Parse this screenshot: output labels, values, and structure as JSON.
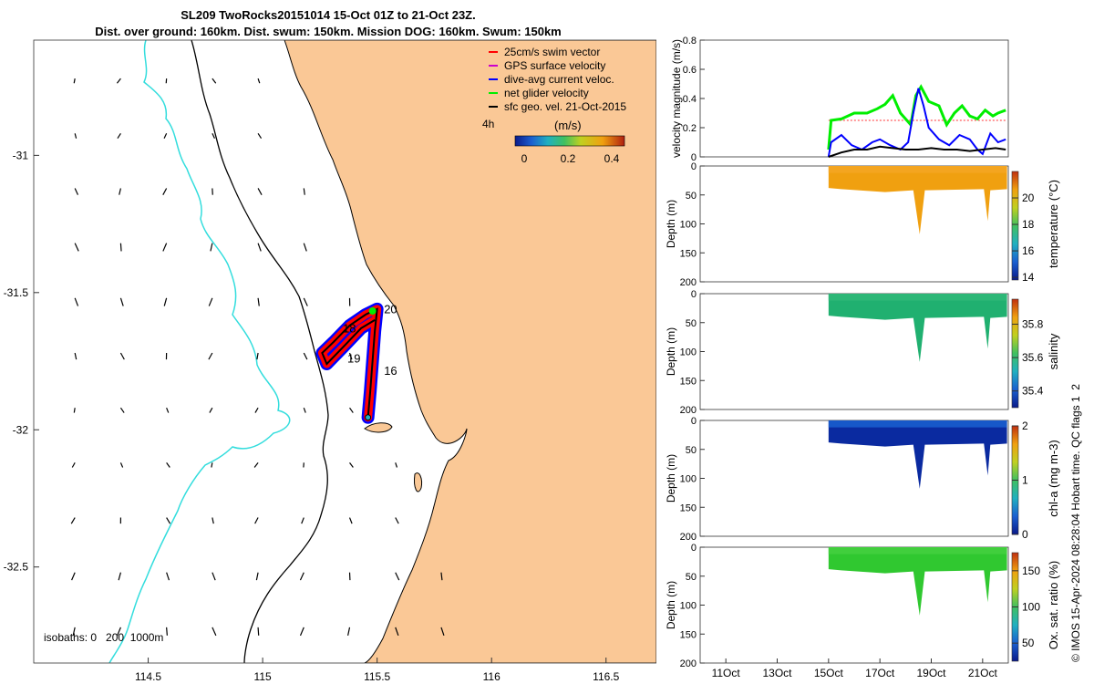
{
  "title": {
    "line1": "SL209 TwoRocks20151014 15-Oct 01Z to 21-Oct 23Z.",
    "line2": "Dist. over ground: 160km. Dist. swum: 150km. Mission DOG: 160km. Swum: 150km"
  },
  "colors": {
    "land": "#fac896",
    "isobath": "#000000",
    "isobath_1000": "#33dddd",
    "track_red": "#ff0000",
    "track_blue": "#0000ff",
    "track_green": "#00ee00",
    "track_black": "#000000",
    "gps_magenta": "#cc00cc"
  },
  "chart_data": [
    {
      "type": "map",
      "name": "glider-track-map",
      "x_ticks": [
        "114.5",
        "115",
        "115.5",
        "116",
        "116.5"
      ],
      "y_ticks": [
        "-31",
        "-31.5",
        "-32",
        "-32.5"
      ],
      "xlim": [
        114.0,
        116.72
      ],
      "ylim": [
        -32.85,
        -30.58
      ],
      "legend": {
        "items": [
          {
            "label": "25cm/s swim vector",
            "color": "#ff0000"
          },
          {
            "label": "GPS surface velocity",
            "color": "#cc00cc"
          },
          {
            "label": "dive-avg current veloc.",
            "color": "#0000ff"
          },
          {
            "label": "net glider velocity",
            "color": "#00ee00"
          },
          {
            "label": "sfc geo. vel. 21-Oct-2015",
            "color": "#000000"
          }
        ],
        "colorbar_time": "4h",
        "colorbar_units": "(m/s)",
        "colorbar_ticks": [
          "0",
          "0.2",
          "0.4"
        ],
        "colorbar_range": [
          0,
          0.5
        ]
      },
      "track_labels": [
        {
          "label": "20",
          "lon": 115.53,
          "lat": -31.575
        },
        {
          "label": "18",
          "lon": 115.35,
          "lat": -31.645
        },
        {
          "label": "19",
          "lon": 115.37,
          "lat": -31.755
        },
        {
          "label": "16",
          "lon": 115.53,
          "lat": -31.8
        }
      ],
      "track": [
        {
          "lon": 115.46,
          "lat": -31.955
        },
        {
          "lon": 115.47,
          "lat": -31.86
        },
        {
          "lon": 115.48,
          "lat": -31.75
        },
        {
          "lon": 115.49,
          "lat": -31.64
        },
        {
          "lon": 115.5,
          "lat": -31.56
        },
        {
          "lon": 115.45,
          "lat": -31.58
        },
        {
          "lon": 115.38,
          "lat": -31.62
        },
        {
          "lon": 115.31,
          "lat": -31.68
        },
        {
          "lon": 115.26,
          "lat": -31.72
        },
        {
          "lon": 115.28,
          "lat": -31.76
        },
        {
          "lon": 115.35,
          "lat": -31.7
        },
        {
          "lon": 115.43,
          "lat": -31.63
        },
        {
          "lon": 115.49,
          "lat": -31.6
        }
      ],
      "isobaths_label": "isobaths: 0   200  1000m"
    },
    {
      "type": "line",
      "name": "velocity-magnitude",
      "ylabel": "velocity magnitude (m/s)",
      "ylim": [
        0,
        0.8
      ],
      "y_ticks": [
        "0",
        "0.2",
        "0.4",
        "0.6",
        "0.8"
      ],
      "xlim": [
        10.0,
        22.0
      ],
      "series": [
        {
          "name": "net glider velocity",
          "color": "#00ee00",
          "x": [
            15.0,
            15.1,
            15.5,
            16.0,
            16.5,
            16.9,
            17.2,
            17.5,
            17.8,
            18.2,
            18.4,
            18.6,
            18.9,
            19.3,
            19.6,
            19.9,
            20.2,
            20.5,
            20.8,
            21.1,
            21.4,
            21.6,
            21.9
          ],
          "values": [
            0.05,
            0.25,
            0.26,
            0.3,
            0.3,
            0.33,
            0.36,
            0.42,
            0.3,
            0.22,
            0.42,
            0.48,
            0.38,
            0.35,
            0.22,
            0.3,
            0.35,
            0.28,
            0.26,
            0.32,
            0.28,
            0.3,
            0.32
          ]
        },
        {
          "name": "dive-avg current veloc.",
          "color": "#0000ff",
          "x": [
            15.0,
            15.1,
            15.5,
            15.9,
            16.3,
            16.7,
            17.0,
            17.4,
            17.8,
            18.1,
            18.3,
            18.5,
            18.7,
            18.9,
            19.3,
            19.7,
            20.1,
            20.5,
            20.8,
            21.0,
            21.3,
            21.6,
            21.9
          ],
          "values": [
            0.0,
            0.1,
            0.15,
            0.08,
            0.05,
            0.1,
            0.12,
            0.08,
            0.05,
            0.1,
            0.3,
            0.47,
            0.35,
            0.2,
            0.12,
            0.08,
            0.15,
            0.12,
            0.05,
            0.02,
            0.16,
            0.1,
            0.12
          ]
        },
        {
          "name": "sfc geo. vel.",
          "color": "#000000",
          "x": [
            15.0,
            15.5,
            16.0,
            16.5,
            17.0,
            17.5,
            18.0,
            18.5,
            19.0,
            19.5,
            20.0,
            20.5,
            21.0,
            21.5,
            21.9
          ],
          "values": [
            0.0,
            0.03,
            0.05,
            0.05,
            0.07,
            0.06,
            0.05,
            0.05,
            0.06,
            0.05,
            0.05,
            0.04,
            0.05,
            0.06,
            0.05
          ]
        }
      ]
    },
    {
      "type": "heatmap",
      "name": "temperature-section",
      "ylabel": "Depth (m)",
      "y_ticks": [
        "0",
        "50",
        "100",
        "150",
        "200"
      ],
      "ylim": [
        200,
        0
      ],
      "colorbar_label": "temperature (°C)",
      "colorbar_ticks": [
        "14",
        "16",
        "18",
        "20"
      ],
      "colorbar_range": [
        13.8,
        22
      ],
      "data_fill": "#f0a010",
      "data_color_top": "#f5a623",
      "stops": [
        "#0a1a8a",
        "#1a5fd0",
        "#20b0c0",
        "#40c060",
        "#c0d020",
        "#f0a010",
        "#c03010"
      ]
    },
    {
      "type": "heatmap",
      "name": "salinity-section",
      "ylabel": "Depth (m)",
      "y_ticks": [
        "0",
        "50",
        "100",
        "150",
        "200"
      ],
      "ylim": [
        200,
        0
      ],
      "colorbar_label": "salinity",
      "colorbar_ticks": [
        "35.4",
        "35.6",
        "35.8"
      ],
      "colorbar_range": [
        35.3,
        35.95
      ],
      "data_fill": "#20b070",
      "data_color_top": "#30b878",
      "stops": [
        "#0a1a8a",
        "#1a5fd0",
        "#20b0c0",
        "#40c060",
        "#c0d020",
        "#f0a010",
        "#c03010"
      ]
    },
    {
      "type": "heatmap",
      "name": "chla-section",
      "ylabel": "Depth (m)",
      "y_ticks": [
        "0",
        "50",
        "100",
        "150",
        "200"
      ],
      "ylim": [
        200,
        0
      ],
      "colorbar_label": "chl-a (mg m-3)",
      "colorbar_ticks": [
        "0",
        "1",
        "2"
      ],
      "colorbar_range": [
        0,
        2
      ],
      "data_fill": "#0a2aa0",
      "data_color_top": "#1a60d0",
      "stops": [
        "#0a1a8a",
        "#1a5fd0",
        "#20b0c0",
        "#40c060",
        "#c0d020",
        "#f0a010",
        "#c03010"
      ]
    },
    {
      "type": "heatmap",
      "name": "oxygen-section",
      "ylabel": "Depth (m)",
      "y_ticks": [
        "0",
        "50",
        "100",
        "150",
        "200"
      ],
      "ylim": [
        200,
        0
      ],
      "colorbar_label": "Ox. sat. ratio (%)",
      "colorbar_ticks": [
        "50",
        "100",
        "150"
      ],
      "colorbar_range": [
        25,
        175
      ],
      "data_fill": "#30c830",
      "data_color_top": "#44d040",
      "stops": [
        "#0a1a8a",
        "#1a5fd0",
        "#20b0c0",
        "#40c060",
        "#c0d020",
        "#f0a010",
        "#c03010"
      ]
    }
  ],
  "time_axis": {
    "ticks": [
      "11Oct",
      "13Oct",
      "15Oct",
      "17Oct",
      "19Oct",
      "21Oct"
    ],
    "values": [
      11,
      13,
      15,
      17,
      19,
      21
    ]
  },
  "credit": "© IMOS 15-Apr-2024 08:28:04 Hobart time. QC flags 1  2"
}
